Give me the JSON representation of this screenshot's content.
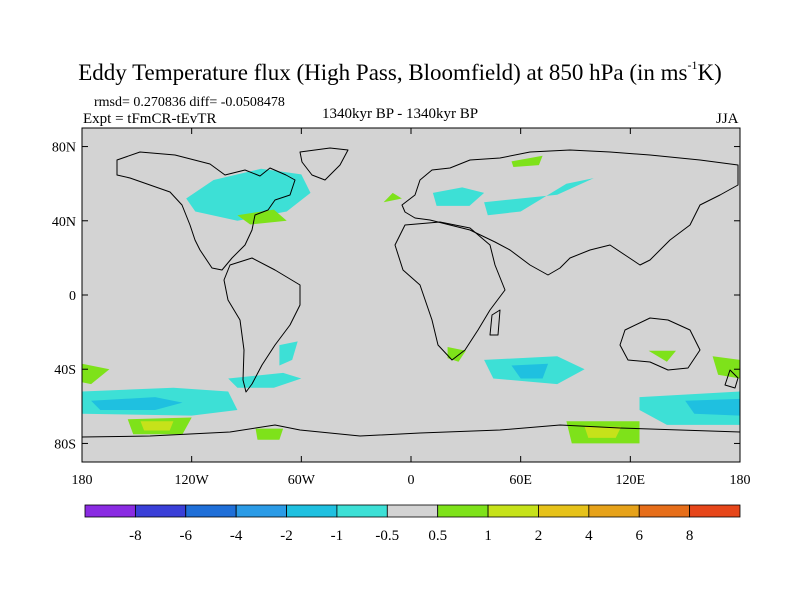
{
  "header": {
    "title_main": "Eddy Temperature flux (High Pass, Bloomfield) at 850 hPa (in ms",
    "title_sup": "-1",
    "title_end": "K)",
    "stats": "rmsd= 0.270836 diff= -0.0508478",
    "experiment": "Expt = tFmCR-tEvTR",
    "period": "1340kyr BP - 1340kyr BP",
    "season": "JJA"
  },
  "map": {
    "projection": "cylindrical-equidistant",
    "lon_range": [
      -180,
      180
    ],
    "lat_range": [
      -90,
      90
    ],
    "lat_ticks": [
      {
        "value": 80,
        "label": "80N"
      },
      {
        "value": 40,
        "label": "40N"
      },
      {
        "value": 0,
        "label": "0"
      },
      {
        "value": -40,
        "label": "40S"
      },
      {
        "value": -80,
        "label": "80S"
      }
    ],
    "lon_ticks": [
      {
        "value": -180,
        "label": "180"
      },
      {
        "value": -120,
        "label": "120W"
      },
      {
        "value": -60,
        "label": "60W"
      },
      {
        "value": 0,
        "label": "0"
      },
      {
        "value": 60,
        "label": "60E"
      },
      {
        "value": 120,
        "label": "120E"
      },
      {
        "value": 180,
        "label": "180"
      }
    ],
    "background_color": "#d3d3d3",
    "coastline_color": "#000000"
  },
  "colorbar": {
    "colors": [
      "#8a2be2",
      "#3a3fd8",
      "#1f6fd8",
      "#2b9be6",
      "#1fc0e0",
      "#3de0d6",
      "#d3d3d3",
      "#7ee21a",
      "#c6e21a",
      "#e6c21a",
      "#e6a21a",
      "#e66e1a",
      "#e6461a"
    ],
    "labels": [
      "-8",
      "-6",
      "-4",
      "-2",
      "-1",
      "-0.5",
      "0.5",
      "1",
      "2",
      "4",
      "6",
      "8"
    ]
  },
  "chart_data": {
    "type": "heatmap",
    "variable": "Eddy Temperature flux (High Pass, Bloomfield) at 850 hPa",
    "units": "ms-1K",
    "levels": [
      -8,
      -6,
      -4,
      -2,
      -1,
      -0.5,
      0.5,
      1,
      2,
      4,
      6,
      8
    ],
    "rmsd": 0.270836,
    "diff": -0.0508478,
    "regions": [
      {
        "level": "-1",
        "polygon": [
          [
            -115,
            55
          ],
          [
            -100,
            60
          ],
          [
            -80,
            63
          ],
          [
            -65,
            60
          ],
          [
            -62,
            52
          ],
          [
            -72,
            48
          ],
          [
            -95,
            45
          ],
          [
            -113,
            47
          ]
        ]
      },
      {
        "level": "-0.5",
        "polygon": [
          [
            -123,
            52
          ],
          [
            -108,
            62
          ],
          [
            -82,
            68
          ],
          [
            -60,
            65
          ],
          [
            -55,
            55
          ],
          [
            -68,
            45
          ],
          [
            -95,
            40
          ],
          [
            -118,
            45
          ]
        ]
      },
      {
        "level": "0.5",
        "polygon": [
          [
            -95,
            43
          ],
          [
            -75,
            46
          ],
          [
            -68,
            40
          ],
          [
            -88,
            38
          ]
        ]
      },
      {
        "level": "-0.5",
        "polygon": [
          [
            12,
            55
          ],
          [
            28,
            58
          ],
          [
            40,
            55
          ],
          [
            32,
            48
          ],
          [
            14,
            48
          ]
        ]
      },
      {
        "level": "-0.5",
        "polygon": [
          [
            40,
            50
          ],
          [
            80,
            54
          ],
          [
            100,
            63
          ],
          [
            85,
            60
          ],
          [
            60,
            45
          ],
          [
            42,
            43
          ]
        ]
      },
      {
        "level": "0.5",
        "polygon": [
          [
            55,
            72
          ],
          [
            72,
            75
          ],
          [
            70,
            70
          ],
          [
            56,
            69
          ]
        ]
      },
      {
        "level": "0.5",
        "polygon": [
          [
            -10,
            55
          ],
          [
            -5,
            52
          ],
          [
            -15,
            50
          ]
        ]
      },
      {
        "level": "-0.5",
        "polygon": [
          [
            -180,
            -52
          ],
          [
            -130,
            -50
          ],
          [
            -100,
            -52
          ],
          [
            -95,
            -62
          ],
          [
            -120,
            -65
          ],
          [
            -180,
            -64
          ]
        ]
      },
      {
        "level": "-1",
        "polygon": [
          [
            -175,
            -57
          ],
          [
            -140,
            -55
          ],
          [
            -125,
            -58
          ],
          [
            -140,
            -62
          ],
          [
            -170,
            -62
          ]
        ]
      },
      {
        "level": "0.5",
        "polygon": [
          [
            -180,
            -37
          ],
          [
            -165,
            -40
          ],
          [
            -175,
            -48
          ],
          [
            -180,
            -47
          ]
        ]
      },
      {
        "level": "0.5",
        "polygon": [
          [
            -155,
            -67
          ],
          [
            -120,
            -66
          ],
          [
            -125,
            -75
          ],
          [
            -152,
            -75
          ]
        ]
      },
      {
        "level": "1",
        "polygon": [
          [
            -148,
            -68
          ],
          [
            -130,
            -68
          ],
          [
            -132,
            -73
          ],
          [
            -146,
            -73
          ]
        ]
      },
      {
        "level": "-0.5",
        "polygon": [
          [
            -100,
            -45
          ],
          [
            -70,
            -42
          ],
          [
            -60,
            -45
          ],
          [
            -75,
            -50
          ],
          [
            -95,
            -50
          ]
        ]
      },
      {
        "level": "0.5",
        "polygon": [
          [
            -85,
            -72
          ],
          [
            -70,
            -72
          ],
          [
            -72,
            -78
          ],
          [
            -84,
            -78
          ]
        ]
      },
      {
        "level": "-0.5",
        "polygon": [
          [
            -72,
            -27
          ],
          [
            -62,
            -25
          ],
          [
            -65,
            -35
          ],
          [
            -72,
            -38
          ]
        ]
      },
      {
        "level": "-0.5",
        "polygon": [
          [
            40,
            -35
          ],
          [
            80,
            -33
          ],
          [
            95,
            -40
          ],
          [
            80,
            -48
          ],
          [
            45,
            -45
          ]
        ]
      },
      {
        "level": "-1",
        "polygon": [
          [
            55,
            -38
          ],
          [
            75,
            -37
          ],
          [
            72,
            -45
          ],
          [
            60,
            -45
          ]
        ]
      },
      {
        "level": "0.5",
        "polygon": [
          [
            20,
            -28
          ],
          [
            30,
            -30
          ],
          [
            26,
            -36
          ],
          [
            20,
            -34
          ]
        ]
      },
      {
        "level": "-0.5",
        "polygon": [
          [
            125,
            -55
          ],
          [
            180,
            -52
          ],
          [
            180,
            -70
          ],
          [
            140,
            -70
          ],
          [
            125,
            -62
          ]
        ]
      },
      {
        "level": "-1",
        "polygon": [
          [
            150,
            -57
          ],
          [
            180,
            -56
          ],
          [
            180,
            -65
          ],
          [
            155,
            -64
          ]
        ]
      },
      {
        "level": "0.5",
        "polygon": [
          [
            165,
            -33
          ],
          [
            180,
            -35
          ],
          [
            180,
            -45
          ],
          [
            168,
            -43
          ]
        ]
      },
      {
        "level": "0.5",
        "polygon": [
          [
            85,
            -68
          ],
          [
            125,
            -68
          ],
          [
            125,
            -80
          ],
          [
            88,
            -80
          ]
        ]
      },
      {
        "level": "1",
        "polygon": [
          [
            95,
            -71
          ],
          [
            115,
            -71
          ],
          [
            112,
            -77
          ],
          [
            97,
            -77
          ]
        ]
      },
      {
        "level": "0.5",
        "polygon": [
          [
            130,
            -30
          ],
          [
            145,
            -30
          ],
          [
            140,
            -36
          ]
        ]
      }
    ]
  }
}
